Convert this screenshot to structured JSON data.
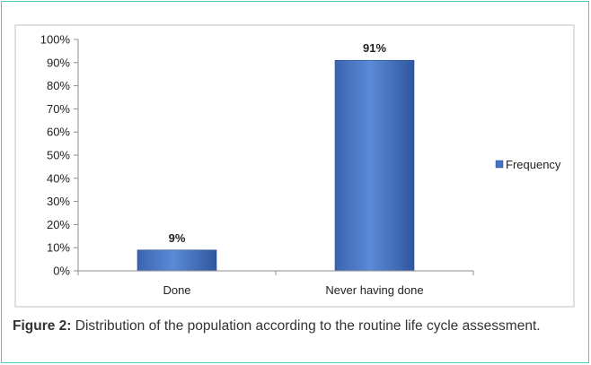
{
  "chart_data": {
    "type": "bar",
    "categories": [
      "Done",
      "Never having done"
    ],
    "series": [
      {
        "name": "Frequency",
        "values": [
          9,
          91
        ],
        "labels": [
          "9%",
          "91%"
        ]
      }
    ],
    "yticks": [
      "0%",
      "10%",
      "20%",
      "30%",
      "40%",
      "50%",
      "60%",
      "70%",
      "80%",
      "90%",
      "100%"
    ],
    "ylim": [
      0,
      100
    ],
    "grid": false,
    "legend": "right",
    "bar_color": "#4472c4"
  },
  "caption": {
    "label": "Figure 2:",
    "text": " Distribution of the population according to the routine life cycle assessment."
  }
}
